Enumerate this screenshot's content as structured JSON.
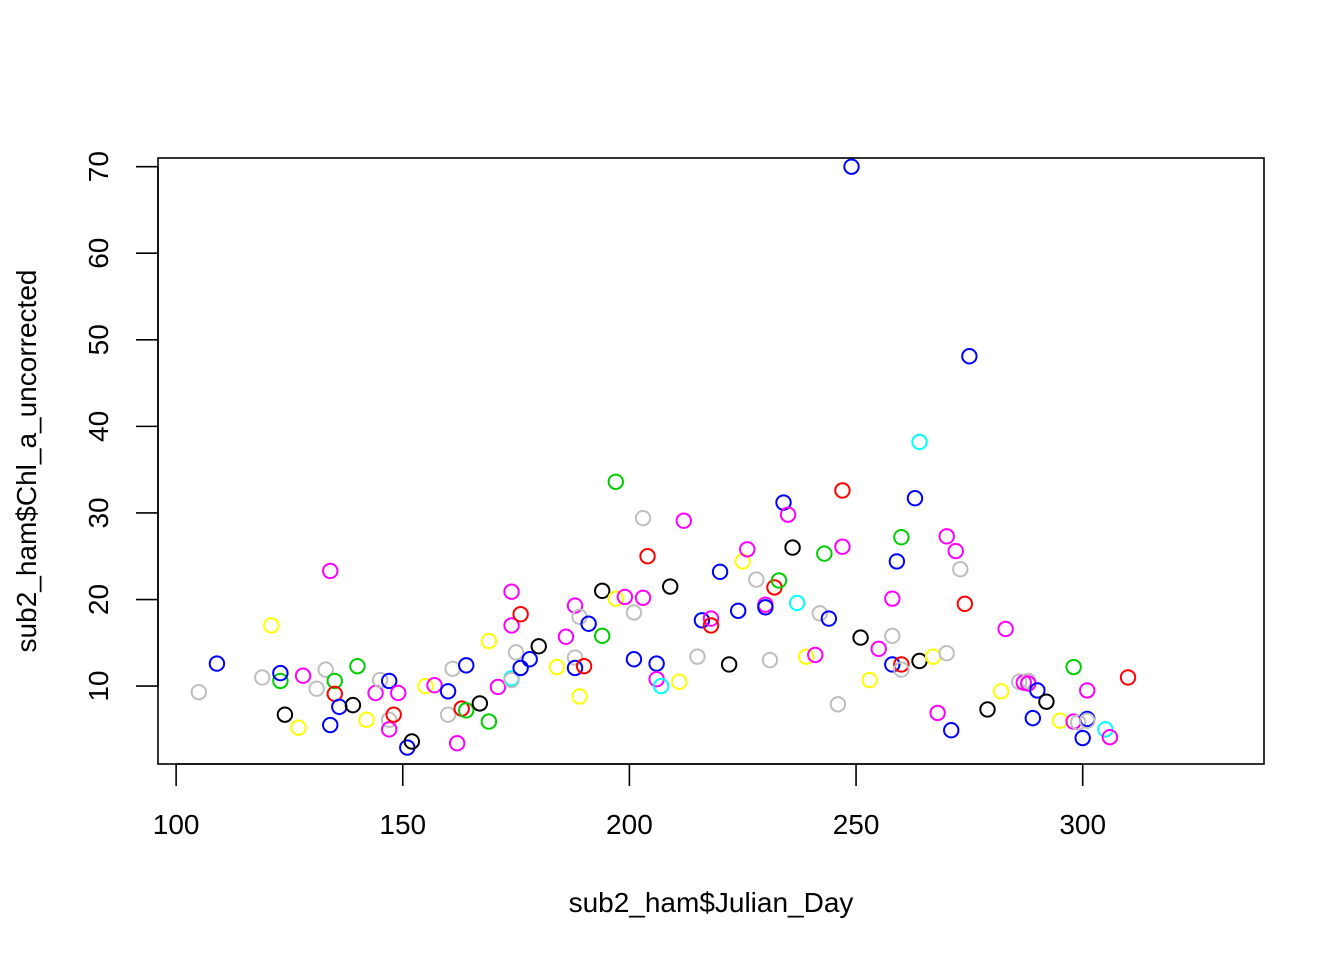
{
  "chart_data": {
    "type": "scatter",
    "title": "",
    "xlabel": "sub2_ham$Julian_Day",
    "ylabel": "sub2_ham$Chl_a_uncorrected",
    "xlim": [
      96,
      340
    ],
    "ylim": [
      1,
      71
    ],
    "xticks": [
      100,
      150,
      200,
      250,
      300
    ],
    "yticks": [
      10,
      20,
      30,
      40,
      50,
      60,
      70
    ],
    "xtick_labels": [
      "100",
      "150",
      "200",
      "250",
      "300"
    ],
    "ytick_labels": [
      "10",
      "20",
      "30",
      "40",
      "50",
      "60",
      "70"
    ],
    "grid": false,
    "legend": "none",
    "marker": "open-circle",
    "colors": {
      "black": "#000000",
      "red": "#ff0000",
      "green": "#00cd00",
      "blue": "#0000ff",
      "cyan": "#00ffff",
      "magenta": "#ff00ff",
      "yellow": "#ffff00",
      "gray": "#bebebe"
    },
    "points": [
      {
        "x": 105,
        "y": 9.3,
        "c": "gray"
      },
      {
        "x": 109,
        "y": 12.6,
        "c": "blue"
      },
      {
        "x": 119,
        "y": 11.0,
        "c": "gray"
      },
      {
        "x": 121,
        "y": 17.0,
        "c": "yellow"
      },
      {
        "x": 123,
        "y": 10.6,
        "c": "green"
      },
      {
        "x": 123,
        "y": 11.5,
        "c": "blue"
      },
      {
        "x": 124,
        "y": 6.7,
        "c": "black"
      },
      {
        "x": 127,
        "y": 5.2,
        "c": "yellow"
      },
      {
        "x": 128,
        "y": 11.2,
        "c": "magenta"
      },
      {
        "x": 131,
        "y": 9.7,
        "c": "gray"
      },
      {
        "x": 133,
        "y": 11.9,
        "c": "gray"
      },
      {
        "x": 134,
        "y": 23.3,
        "c": "magenta"
      },
      {
        "x": 134,
        "y": 5.5,
        "c": "blue"
      },
      {
        "x": 135,
        "y": 10.6,
        "c": "green"
      },
      {
        "x": 135,
        "y": 9.1,
        "c": "red"
      },
      {
        "x": 136,
        "y": 7.6,
        "c": "blue"
      },
      {
        "x": 139,
        "y": 7.8,
        "c": "black"
      },
      {
        "x": 140,
        "y": 12.3,
        "c": "green"
      },
      {
        "x": 142,
        "y": 6.1,
        "c": "yellow"
      },
      {
        "x": 144,
        "y": 9.2,
        "c": "magenta"
      },
      {
        "x": 145,
        "y": 10.7,
        "c": "gray"
      },
      {
        "x": 147,
        "y": 10.6,
        "c": "blue"
      },
      {
        "x": 147,
        "y": 6.1,
        "c": "gray"
      },
      {
        "x": 147,
        "y": 5.0,
        "c": "magenta"
      },
      {
        "x": 148,
        "y": 6.7,
        "c": "red"
      },
      {
        "x": 149,
        "y": 9.2,
        "c": "magenta"
      },
      {
        "x": 151,
        "y": 2.9,
        "c": "blue"
      },
      {
        "x": 152,
        "y": 3.6,
        "c": "black"
      },
      {
        "x": 155,
        "y": 10.0,
        "c": "yellow"
      },
      {
        "x": 157,
        "y": 10.1,
        "c": "magenta"
      },
      {
        "x": 160,
        "y": 9.4,
        "c": "blue"
      },
      {
        "x": 160,
        "y": 6.7,
        "c": "gray"
      },
      {
        "x": 161,
        "y": 12.0,
        "c": "gray"
      },
      {
        "x": 162,
        "y": 3.4,
        "c": "magenta"
      },
      {
        "x": 163,
        "y": 7.4,
        "c": "red"
      },
      {
        "x": 164,
        "y": 7.2,
        "c": "green"
      },
      {
        "x": 164,
        "y": 12.4,
        "c": "blue"
      },
      {
        "x": 167,
        "y": 8.0,
        "c": "black"
      },
      {
        "x": 169,
        "y": 15.2,
        "c": "yellow"
      },
      {
        "x": 169,
        "y": 5.9,
        "c": "green"
      },
      {
        "x": 171,
        "y": 9.9,
        "c": "magenta"
      },
      {
        "x": 174,
        "y": 10.9,
        "c": "cyan"
      },
      {
        "x": 174,
        "y": 10.7,
        "c": "gray"
      },
      {
        "x": 174,
        "y": 20.9,
        "c": "magenta"
      },
      {
        "x": 174,
        "y": 17.0,
        "c": "magenta"
      },
      {
        "x": 175,
        "y": 13.9,
        "c": "gray"
      },
      {
        "x": 176,
        "y": 18.3,
        "c": "red"
      },
      {
        "x": 176,
        "y": 12.1,
        "c": "blue"
      },
      {
        "x": 178,
        "y": 13.1,
        "c": "blue"
      },
      {
        "x": 180,
        "y": 14.6,
        "c": "black"
      },
      {
        "x": 184,
        "y": 12.2,
        "c": "yellow"
      },
      {
        "x": 186,
        "y": 15.7,
        "c": "magenta"
      },
      {
        "x": 188,
        "y": 19.3,
        "c": "magenta"
      },
      {
        "x": 188,
        "y": 13.3,
        "c": "gray"
      },
      {
        "x": 188,
        "y": 12.1,
        "c": "blue"
      },
      {
        "x": 189,
        "y": 8.8,
        "c": "yellow"
      },
      {
        "x": 190,
        "y": 12.3,
        "c": "red"
      },
      {
        "x": 189,
        "y": 18.0,
        "c": "gray"
      },
      {
        "x": 191,
        "y": 17.2,
        "c": "blue"
      },
      {
        "x": 194,
        "y": 21.0,
        "c": "black"
      },
      {
        "x": 194,
        "y": 15.8,
        "c": "green"
      },
      {
        "x": 197,
        "y": 33.6,
        "c": "green"
      },
      {
        "x": 197,
        "y": 20.1,
        "c": "yellow"
      },
      {
        "x": 199,
        "y": 20.3,
        "c": "magenta"
      },
      {
        "x": 201,
        "y": 18.5,
        "c": "gray"
      },
      {
        "x": 201,
        "y": 13.1,
        "c": "blue"
      },
      {
        "x": 203,
        "y": 29.4,
        "c": "gray"
      },
      {
        "x": 203,
        "y": 20.2,
        "c": "magenta"
      },
      {
        "x": 204,
        "y": 25.0,
        "c": "red"
      },
      {
        "x": 206,
        "y": 12.6,
        "c": "blue"
      },
      {
        "x": 206,
        "y": 10.8,
        "c": "magenta"
      },
      {
        "x": 207,
        "y": 10.0,
        "c": "cyan"
      },
      {
        "x": 209,
        "y": 21.5,
        "c": "black"
      },
      {
        "x": 211,
        "y": 10.5,
        "c": "yellow"
      },
      {
        "x": 212,
        "y": 29.1,
        "c": "magenta"
      },
      {
        "x": 215,
        "y": 13.4,
        "c": "gray"
      },
      {
        "x": 216,
        "y": 17.6,
        "c": "blue"
      },
      {
        "x": 218,
        "y": 17.8,
        "c": "magenta"
      },
      {
        "x": 218,
        "y": 17.0,
        "c": "red"
      },
      {
        "x": 220,
        "y": 23.2,
        "c": "blue"
      },
      {
        "x": 222,
        "y": 12.5,
        "c": "black"
      },
      {
        "x": 224,
        "y": 18.7,
        "c": "blue"
      },
      {
        "x": 225,
        "y": 24.4,
        "c": "yellow"
      },
      {
        "x": 226,
        "y": 25.8,
        "c": "magenta"
      },
      {
        "x": 228,
        "y": 22.3,
        "c": "gray"
      },
      {
        "x": 230,
        "y": 19.4,
        "c": "magenta"
      },
      {
        "x": 230,
        "y": 19.1,
        "c": "blue"
      },
      {
        "x": 231,
        "y": 13.0,
        "c": "gray"
      },
      {
        "x": 232,
        "y": 21.4,
        "c": "red"
      },
      {
        "x": 233,
        "y": 22.2,
        "c": "green"
      },
      {
        "x": 234,
        "y": 31.2,
        "c": "blue"
      },
      {
        "x": 235,
        "y": 29.8,
        "c": "magenta"
      },
      {
        "x": 236,
        "y": 26.0,
        "c": "black"
      },
      {
        "x": 237,
        "y": 19.6,
        "c": "cyan"
      },
      {
        "x": 239,
        "y": 13.4,
        "c": "yellow"
      },
      {
        "x": 241,
        "y": 13.6,
        "c": "magenta"
      },
      {
        "x": 242,
        "y": 18.4,
        "c": "gray"
      },
      {
        "x": 243,
        "y": 25.3,
        "c": "green"
      },
      {
        "x": 244,
        "y": 17.8,
        "c": "blue"
      },
      {
        "x": 246,
        "y": 7.9,
        "c": "gray"
      },
      {
        "x": 247,
        "y": 32.6,
        "c": "red"
      },
      {
        "x": 247,
        "y": 26.1,
        "c": "magenta"
      },
      {
        "x": 249,
        "y": 70.0,
        "c": "blue"
      },
      {
        "x": 251,
        "y": 15.6,
        "c": "black"
      },
      {
        "x": 253,
        "y": 10.7,
        "c": "yellow"
      },
      {
        "x": 255,
        "y": 14.3,
        "c": "magenta"
      },
      {
        "x": 258,
        "y": 20.1,
        "c": "magenta"
      },
      {
        "x": 258,
        "y": 15.8,
        "c": "gray"
      },
      {
        "x": 258,
        "y": 12.5,
        "c": "blue"
      },
      {
        "x": 259,
        "y": 24.4,
        "c": "blue"
      },
      {
        "x": 260,
        "y": 27.2,
        "c": "green"
      },
      {
        "x": 260,
        "y": 12.5,
        "c": "red"
      },
      {
        "x": 260,
        "y": 11.9,
        "c": "gray"
      },
      {
        "x": 263,
        "y": 31.7,
        "c": "blue"
      },
      {
        "x": 264,
        "y": 38.2,
        "c": "cyan"
      },
      {
        "x": 264,
        "y": 12.9,
        "c": "black"
      },
      {
        "x": 267,
        "y": 13.4,
        "c": "yellow"
      },
      {
        "x": 268,
        "y": 6.9,
        "c": "magenta"
      },
      {
        "x": 270,
        "y": 27.3,
        "c": "magenta"
      },
      {
        "x": 270,
        "y": 13.8,
        "c": "gray"
      },
      {
        "x": 271,
        "y": 4.9,
        "c": "blue"
      },
      {
        "x": 272,
        "y": 25.6,
        "c": "magenta"
      },
      {
        "x": 273,
        "y": 23.5,
        "c": "gray"
      },
      {
        "x": 274,
        "y": 19.5,
        "c": "red"
      },
      {
        "x": 275,
        "y": 48.1,
        "c": "blue"
      },
      {
        "x": 279,
        "y": 7.3,
        "c": "black"
      },
      {
        "x": 282,
        "y": 9.4,
        "c": "yellow"
      },
      {
        "x": 283,
        "y": 16.6,
        "c": "magenta"
      },
      {
        "x": 286,
        "y": 10.5,
        "c": "gray"
      },
      {
        "x": 287,
        "y": 10.4,
        "c": "magenta"
      },
      {
        "x": 288,
        "y": 10.6,
        "c": "gray"
      },
      {
        "x": 288,
        "y": 10.3,
        "c": "magenta"
      },
      {
        "x": 289,
        "y": 6.3,
        "c": "blue"
      },
      {
        "x": 290,
        "y": 9.5,
        "c": "blue"
      },
      {
        "x": 292,
        "y": 8.2,
        "c": "black"
      },
      {
        "x": 295,
        "y": 6.0,
        "c": "yellow"
      },
      {
        "x": 298,
        "y": 12.2,
        "c": "green"
      },
      {
        "x": 298,
        "y": 5.9,
        "c": "magenta"
      },
      {
        "x": 299,
        "y": 5.8,
        "c": "gray"
      },
      {
        "x": 301,
        "y": 9.5,
        "c": "magenta"
      },
      {
        "x": 301,
        "y": 6.2,
        "c": "blue"
      },
      {
        "x": 301,
        "y": 6.0,
        "c": "gray"
      },
      {
        "x": 300,
        "y": 4.0,
        "c": "blue"
      },
      {
        "x": 305,
        "y": 5.0,
        "c": "cyan"
      },
      {
        "x": 306,
        "y": 4.1,
        "c": "magenta"
      },
      {
        "x": 310,
        "y": 11.0,
        "c": "red"
      }
    ]
  }
}
